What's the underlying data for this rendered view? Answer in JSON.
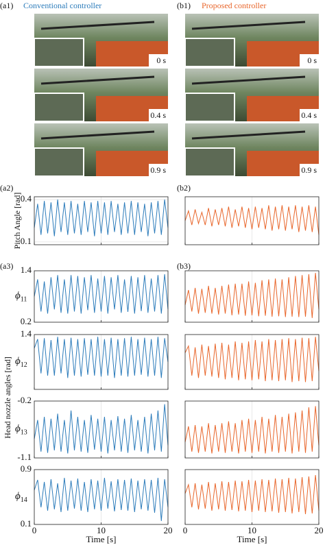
{
  "panels": {
    "a1": {
      "label": "(a1)",
      "title": "Conventional controller",
      "times": [
        "0 s",
        "0.4 s",
        "0.9 s"
      ]
    },
    "b1": {
      "label": "(b1)",
      "title": "Proposed controller",
      "times": [
        "0 s",
        "0.4 s",
        "0.9 s"
      ]
    },
    "a2": "(a2)",
    "b2": "(b2)",
    "a3": "(a3)",
    "b3": "(b3)",
    "nozzle_ylabel": "Head nozzle angles [rad]"
  },
  "chart_data": [
    {
      "type": "line",
      "color": "#2b7bba",
      "grid": true,
      "ylabel": "Pitch Angle [rad]",
      "xlim": [
        0,
        20
      ],
      "xticks": [
        0,
        10,
        20
      ],
      "ylim": [
        0.08,
        0.42
      ],
      "yticks": [
        0.1,
        0.4
      ],
      "x": [
        0,
        0.5,
        1,
        1.5,
        2,
        2.5,
        3,
        3.5,
        4,
        4.5,
        5,
        5.5,
        6,
        6.5,
        7,
        7.5,
        8,
        8.5,
        9,
        9.5,
        10,
        10.5,
        11,
        11.5,
        12,
        12.5,
        13,
        13.5,
        14,
        14.5,
        15,
        15.5,
        16,
        16.5,
        17,
        17.5,
        18,
        18.5,
        19,
        19.5,
        20
      ],
      "values": [
        0.2,
        0.37,
        0.15,
        0.39,
        0.16,
        0.38,
        0.14,
        0.4,
        0.17,
        0.38,
        0.15,
        0.39,
        0.16,
        0.37,
        0.15,
        0.39,
        0.17,
        0.38,
        0.14,
        0.39,
        0.16,
        0.38,
        0.15,
        0.39,
        0.17,
        0.37,
        0.15,
        0.38,
        0.16,
        0.39,
        0.15,
        0.38,
        0.17,
        0.37,
        0.14,
        0.38,
        0.16,
        0.39,
        0.15,
        0.4,
        0.2
      ]
    },
    {
      "type": "line",
      "color": "#2b7bba",
      "grid": true,
      "ylabel": {
        "symbol": "ϕ",
        "subscript": "11"
      },
      "xlim": [
        0,
        20
      ],
      "xticks": [
        0,
        10,
        20
      ],
      "ylim": [
        0.2,
        1.4
      ],
      "yticks": [
        0.2,
        1.4
      ],
      "x": [
        0,
        0.5,
        1,
        1.5,
        2,
        2.5,
        3,
        3.5,
        4,
        4.5,
        5,
        5.5,
        6,
        6.5,
        7,
        7.5,
        8,
        8.5,
        9,
        9.5,
        10,
        10.5,
        11,
        11.5,
        12,
        12.5,
        13,
        13.5,
        14,
        14.5,
        15,
        15.5,
        16,
        16.5,
        17,
        17.5,
        18,
        18.5,
        19,
        19.5,
        20
      ],
      "values": [
        0.8,
        1.2,
        0.45,
        1.15,
        0.4,
        1.25,
        0.5,
        1.3,
        0.42,
        1.2,
        0.4,
        1.3,
        0.45,
        1.28,
        0.4,
        1.25,
        0.48,
        1.3,
        0.42,
        1.22,
        0.45,
        1.28,
        0.4,
        1.25,
        0.5,
        1.3,
        0.42,
        1.2,
        0.44,
        1.28,
        0.4,
        1.25,
        0.46,
        1.3,
        0.42,
        1.22,
        0.45,
        1.3,
        0.4,
        1.32,
        0.5
      ]
    },
    {
      "type": "line",
      "color": "#2b7bba",
      "grid": true,
      "ylabel": {
        "symbol": "ϕ",
        "subscript": "12"
      },
      "xlim": [
        0,
        20
      ],
      "xticks": [
        0,
        10,
        20
      ],
      "ylim": [
        0.2,
        1.4
      ],
      "yticks": [
        1.4
      ],
      "x": [
        0,
        0.5,
        1,
        1.5,
        2,
        2.5,
        3,
        3.5,
        4,
        4.5,
        5,
        5.5,
        6,
        6.5,
        7,
        7.5,
        8,
        8.5,
        9,
        9.5,
        10,
        10.5,
        11,
        11.5,
        12,
        12.5,
        13,
        13.5,
        14,
        14.5,
        15,
        15.5,
        16,
        16.5,
        17,
        17.5,
        18,
        18.5,
        19,
        19.5,
        20
      ],
      "values": [
        1.1,
        1.3,
        0.55,
        1.32,
        0.5,
        1.28,
        0.5,
        1.35,
        0.55,
        1.3,
        0.45,
        1.33,
        0.5,
        1.3,
        0.48,
        1.32,
        0.52,
        1.3,
        0.5,
        1.35,
        0.48,
        1.3,
        0.5,
        1.33,
        0.45,
        1.3,
        0.5,
        1.32,
        0.48,
        1.35,
        0.5,
        1.3,
        0.52,
        1.33,
        0.48,
        1.3,
        0.5,
        1.35,
        0.45,
        1.32,
        0.8
      ]
    },
    {
      "type": "line",
      "color": "#2b7bba",
      "grid": true,
      "ylabel": {
        "symbol": "ϕ",
        "subscript": "13"
      },
      "xlim": [
        0,
        20
      ],
      "xticks": [
        0,
        10,
        20
      ],
      "ylim": [
        -1.1,
        -0.2
      ],
      "yticks": [
        -1.1,
        -0.2
      ],
      "x": [
        0,
        0.5,
        1,
        1.5,
        2,
        2.5,
        3,
        3.5,
        4,
        4.5,
        5,
        5.5,
        6,
        6.5,
        7,
        7.5,
        8,
        8.5,
        9,
        9.5,
        10,
        10.5,
        11,
        11.5,
        12,
        12.5,
        13,
        13.5,
        14,
        14.5,
        15,
        15.5,
        16,
        16.5,
        17,
        17.5,
        18,
        18.5,
        19,
        19.5,
        20
      ],
      "values": [
        -0.8,
        -0.5,
        -1.0,
        -0.45,
        -1.02,
        -0.48,
        -0.98,
        -0.4,
        -1.0,
        -0.5,
        -1.03,
        -0.35,
        -0.98,
        -0.45,
        -1.0,
        -0.5,
        -1.02,
        -0.42,
        -0.97,
        -0.48,
        -1.0,
        -0.45,
        -1.03,
        -0.5,
        -0.98,
        -0.44,
        -1.0,
        -0.48,
        -1.02,
        -0.42,
        -0.98,
        -0.5,
        -1.0,
        -0.45,
        -1.03,
        -0.4,
        -0.98,
        -0.35,
        -1.0,
        -0.25,
        -0.9
      ]
    },
    {
      "type": "line",
      "color": "#2b7bba",
      "grid": true,
      "ylabel": {
        "symbol": "ϕ",
        "subscript": "14"
      },
      "xlabel": "Time [s]",
      "xlim": [
        0,
        20
      ],
      "xticks": [
        0,
        10,
        20
      ],
      "ylim": [
        0.1,
        0.9
      ],
      "yticks": [
        0.1,
        0.9
      ],
      "x": [
        0,
        0.5,
        1,
        1.5,
        2,
        2.5,
        3,
        3.5,
        4,
        4.5,
        5,
        5.5,
        6,
        6.5,
        7,
        7.5,
        8,
        8.5,
        9,
        9.5,
        10,
        10.5,
        11,
        11.5,
        12,
        12.5,
        13,
        13.5,
        14,
        14.5,
        15,
        15.5,
        16,
        16.5,
        17,
        17.5,
        18,
        18.5,
        19,
        19.5,
        20
      ],
      "values": [
        0.6,
        0.75,
        0.35,
        0.72,
        0.3,
        0.76,
        0.32,
        0.7,
        0.28,
        0.78,
        0.3,
        0.74,
        0.33,
        0.77,
        0.3,
        0.72,
        0.28,
        0.76,
        0.32,
        0.74,
        0.3,
        0.78,
        0.33,
        0.73,
        0.29,
        0.76,
        0.31,
        0.75,
        0.3,
        0.77,
        0.28,
        0.74,
        0.32,
        0.76,
        0.3,
        0.75,
        0.27,
        0.78,
        0.15,
        0.76,
        0.35
      ]
    },
    {
      "type": "line",
      "color": "#e8652a",
      "grid": true,
      "xlim": [
        0,
        20
      ],
      "xticks": [
        0,
        10,
        20
      ],
      "ylim": [
        0.08,
        0.42
      ],
      "x": [
        0,
        0.5,
        1,
        1.5,
        2,
        2.5,
        3,
        3.5,
        4,
        4.5,
        5,
        5.5,
        6,
        6.5,
        7,
        7.5,
        8,
        8.5,
        9,
        9.5,
        10,
        10.5,
        11,
        11.5,
        12,
        12.5,
        13,
        13.5,
        14,
        14.5,
        15,
        15.5,
        16,
        16.5,
        17,
        17.5,
        18,
        18.5,
        19,
        19.5,
        20
      ],
      "values": [
        0.25,
        0.32,
        0.22,
        0.33,
        0.23,
        0.31,
        0.22,
        0.34,
        0.21,
        0.33,
        0.22,
        0.34,
        0.21,
        0.35,
        0.2,
        0.33,
        0.21,
        0.35,
        0.2,
        0.34,
        0.19,
        0.35,
        0.2,
        0.34,
        0.19,
        0.36,
        0.18,
        0.35,
        0.19,
        0.36,
        0.18,
        0.35,
        0.19,
        0.36,
        0.17,
        0.35,
        0.18,
        0.36,
        0.17,
        0.35,
        0.15
      ]
    },
    {
      "type": "line",
      "color": "#e8652a",
      "grid": true,
      "xlim": [
        0,
        20
      ],
      "xticks": [
        0,
        10,
        20
      ],
      "ylim": [
        0.2,
        1.4
      ],
      "x": [
        0,
        0.5,
        1,
        1.5,
        2,
        2.5,
        3,
        3.5,
        4,
        4.5,
        5,
        5.5,
        6,
        6.5,
        7,
        7.5,
        8,
        8.5,
        9,
        9.5,
        10,
        10.5,
        11,
        11.5,
        12,
        12.5,
        13,
        13.5,
        14,
        14.5,
        15,
        15.5,
        16,
        16.5,
        17,
        17.5,
        18,
        18.5,
        19,
        19.5,
        20
      ],
      "values": [
        0.6,
        0.95,
        0.45,
        1.0,
        0.4,
        0.98,
        0.42,
        1.05,
        0.4,
        1.0,
        0.38,
        1.05,
        0.4,
        1.08,
        0.36,
        1.1,
        0.38,
        1.1,
        0.35,
        1.15,
        0.36,
        1.12,
        0.34,
        1.18,
        0.35,
        1.2,
        0.33,
        1.22,
        0.34,
        1.2,
        0.32,
        1.25,
        0.33,
        1.28,
        0.32,
        1.3,
        0.33,
        1.32,
        0.3,
        1.35,
        0.5
      ]
    },
    {
      "type": "line",
      "color": "#e8652a",
      "grid": true,
      "xlim": [
        0,
        20
      ],
      "xticks": [
        0,
        10,
        20
      ],
      "ylim": [
        0.2,
        1.4
      ],
      "x": [
        0,
        0.5,
        1,
        1.5,
        2,
        2.5,
        3,
        3.5,
        4,
        4.5,
        5,
        5.5,
        6,
        6.5,
        7,
        7.5,
        8,
        8.5,
        9,
        9.5,
        10,
        10.5,
        11,
        11.5,
        12,
        12.5,
        13,
        13.5,
        14,
        14.5,
        15,
        15.5,
        16,
        16.5,
        17,
        17.5,
        18,
        18.5,
        19,
        19.5,
        20
      ],
      "values": [
        1.0,
        1.15,
        0.5,
        1.12,
        0.45,
        1.18,
        0.5,
        1.15,
        0.48,
        1.2,
        0.45,
        1.22,
        0.42,
        1.18,
        0.45,
        1.25,
        0.4,
        1.22,
        0.42,
        1.25,
        0.4,
        1.28,
        0.42,
        1.25,
        0.38,
        1.3,
        0.4,
        1.28,
        0.38,
        1.3,
        0.4,
        1.32,
        0.36,
        1.3,
        0.38,
        1.33,
        0.36,
        1.32,
        0.38,
        1.35,
        0.6
      ]
    },
    {
      "type": "line",
      "color": "#e8652a",
      "grid": true,
      "xlim": [
        0,
        20
      ],
      "xticks": [
        0,
        10,
        20
      ],
      "ylim": [
        -1.1,
        -0.2
      ],
      "x": [
        0,
        0.5,
        1,
        1.5,
        2,
        2.5,
        3,
        3.5,
        4,
        4.5,
        5,
        5.5,
        6,
        6.5,
        7,
        7.5,
        8,
        8.5,
        9,
        9.5,
        10,
        10.5,
        11,
        11.5,
        12,
        12.5,
        13,
        13.5,
        14,
        14.5,
        15,
        15.5,
        16,
        16.5,
        17,
        17.5,
        18,
        18.5,
        19,
        19.5,
        20
      ],
      "values": [
        -0.85,
        -0.6,
        -1.0,
        -0.58,
        -1.02,
        -0.6,
        -1.0,
        -0.55,
        -1.03,
        -0.58,
        -1.0,
        -0.55,
        -1.02,
        -0.52,
        -1.0,
        -0.55,
        -1.03,
        -0.5,
        -1.0,
        -0.48,
        -1.02,
        -0.5,
        -1.0,
        -0.45,
        -1.03,
        -0.48,
        -1.0,
        -0.42,
        -1.02,
        -0.45,
        -1.0,
        -0.4,
        -1.03,
        -0.38,
        -1.0,
        -0.35,
        -1.02,
        -0.3,
        -1.0,
        -0.28,
        -0.9
      ]
    },
    {
      "type": "line",
      "color": "#e8652a",
      "grid": true,
      "xlabel": "Time [s]",
      "xlim": [
        0,
        20
      ],
      "xticks": [
        0,
        10,
        20
      ],
      "ylim": [
        0.1,
        0.9
      ],
      "x": [
        0,
        0.5,
        1,
        1.5,
        2,
        2.5,
        3,
        3.5,
        4,
        4.5,
        5,
        5.5,
        6,
        6.5,
        7,
        7.5,
        8,
        8.5,
        9,
        9.5,
        10,
        10.5,
        11,
        11.5,
        12,
        12.5,
        13,
        13.5,
        14,
        14.5,
        15,
        15.5,
        16,
        16.5,
        17,
        17.5,
        18,
        18.5,
        19,
        19.5,
        20
      ],
      "values": [
        0.55,
        0.68,
        0.35,
        0.7,
        0.32,
        0.68,
        0.33,
        0.72,
        0.3,
        0.7,
        0.32,
        0.73,
        0.3,
        0.72,
        0.31,
        0.74,
        0.29,
        0.73,
        0.3,
        0.75,
        0.28,
        0.74,
        0.3,
        0.76,
        0.28,
        0.75,
        0.29,
        0.77,
        0.27,
        0.76,
        0.28,
        0.78,
        0.26,
        0.77,
        0.28,
        0.79,
        0.25,
        0.8,
        0.26,
        0.82,
        0.3
      ]
    }
  ]
}
